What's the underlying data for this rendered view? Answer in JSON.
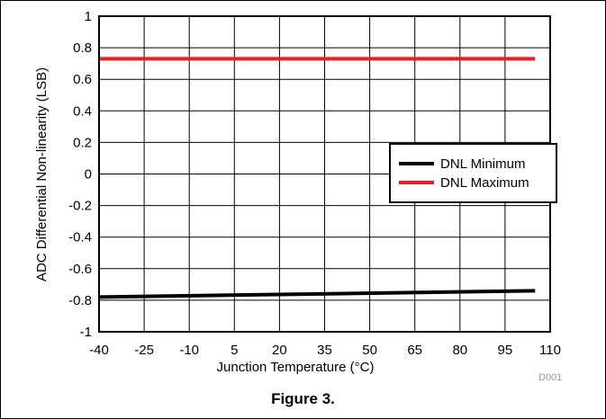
{
  "figure": {
    "caption": "Figure 3.",
    "code": "D001"
  },
  "chart_data": {
    "type": "line",
    "xlabel": "Junction Temperature (°C)",
    "ylabel": "ADC Differential Non-linearity (LSB)",
    "xlim": [
      -40,
      110
    ],
    "ylim": [
      -1,
      1
    ],
    "xticks": [
      "-40",
      "-25",
      "-10",
      "5",
      "20",
      "35",
      "50",
      "65",
      "80",
      "95",
      "110"
    ],
    "yticks": [
      "1",
      "0.8",
      "0.6",
      "0.4",
      "0.2",
      "0",
      "-0.2",
      "-0.4",
      "-0.6",
      "-0.8",
      "-1"
    ],
    "grid": true,
    "legend_position": "right-middle",
    "series": [
      {
        "name": "DNL Minimum",
        "color": "#000000",
        "x": [
          -40,
          105
        ],
        "y": [
          -0.78,
          -0.74
        ]
      },
      {
        "name": "DNL Maximum",
        "color": "#ee1c1c",
        "x": [
          -40,
          105
        ],
        "y": [
          0.73,
          0.73
        ]
      }
    ]
  }
}
